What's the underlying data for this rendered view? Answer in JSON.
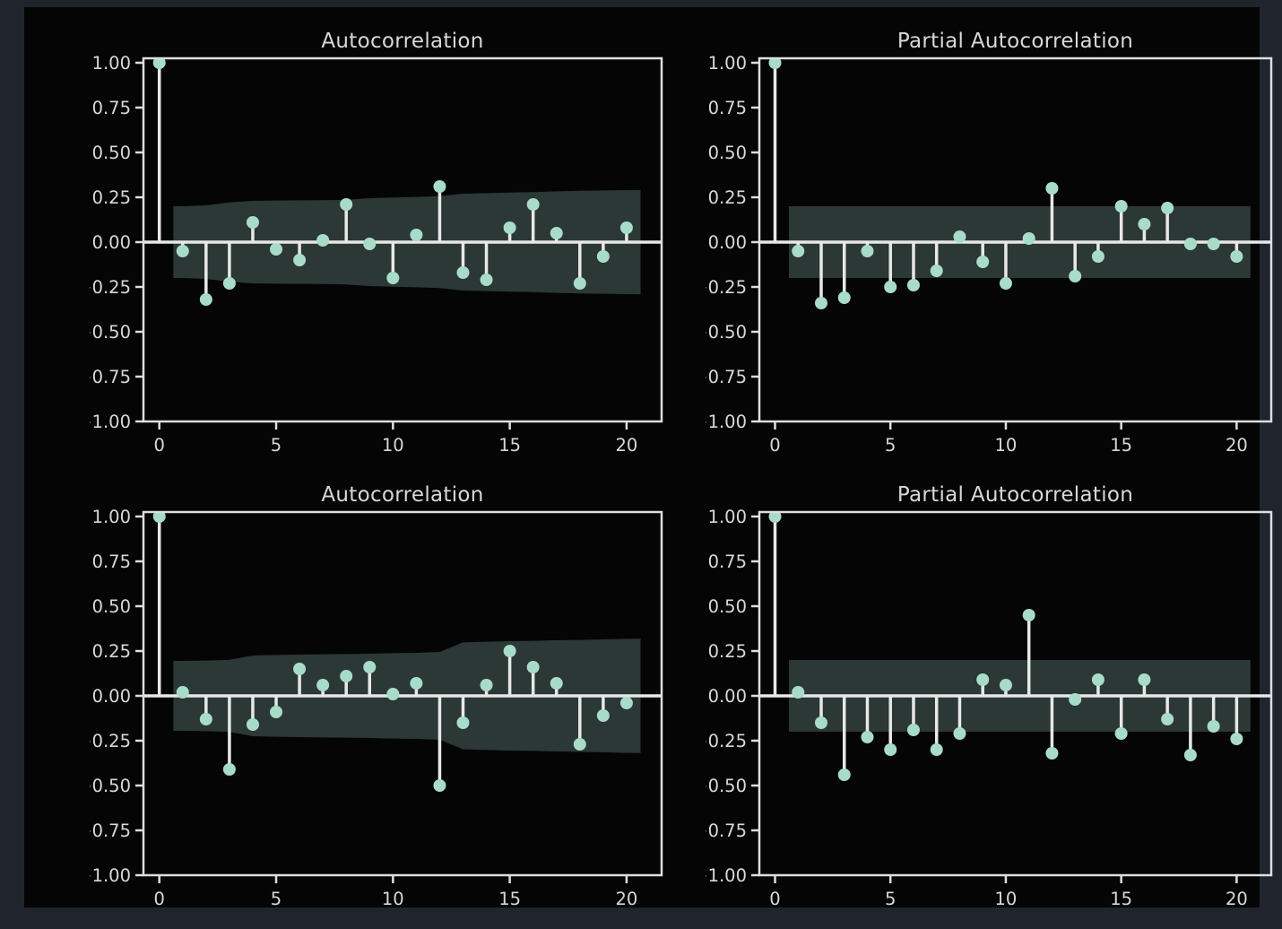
{
  "colors": {
    "page_background": "#20242c",
    "figure_background": "#050505",
    "band_fill": "#2b3835",
    "marker": "#a8dcc8",
    "stem": "#e8e8e6",
    "spine": "#dedede",
    "tick_label": "#d8d8d8",
    "title": "#d8d8d8"
  },
  "axes_defaults": {
    "xlim": [
      -0.68,
      21.5
    ],
    "ylim": [
      -1.0,
      1.025
    ],
    "x_tick_values": [
      0,
      5,
      10,
      15,
      20
    ],
    "x_tick_labels": [
      "0",
      "5",
      "10",
      "15",
      "20"
    ],
    "y_tick_values": [
      1.0,
      0.75,
      0.5,
      0.25,
      0.0,
      -0.25,
      -0.5,
      -0.75,
      -1.0
    ],
    "y_tick_labels": [
      "1.00",
      "0.75",
      "0.50",
      "0.25",
      "0.00",
      "−0.25",
      "−0.50",
      "−0.75",
      "−1.00"
    ],
    "grid": false,
    "legend": "none"
  },
  "chart_data": [
    {
      "id": "tl",
      "type": "stem",
      "title": "Autocorrelation",
      "position": "top-left",
      "lags": [
        0,
        1,
        2,
        3,
        4,
        5,
        6,
        7,
        8,
        9,
        10,
        11,
        12,
        13,
        14,
        15,
        16,
        17,
        18,
        19,
        20
      ],
      "values": [
        1.0,
        -0.05,
        -0.32,
        -0.23,
        0.11,
        -0.04,
        -0.1,
        0.01,
        0.21,
        -0.01,
        -0.2,
        0.04,
        0.31,
        -0.17,
        -0.21,
        0.08,
        0.21,
        0.05,
        -0.23,
        -0.08,
        0.08
      ],
      "band": {
        "lags": [
          0.6,
          1,
          2,
          3,
          4,
          5,
          6,
          7,
          8,
          9,
          10,
          11,
          12,
          13,
          14,
          15,
          16,
          17,
          18,
          19,
          20,
          20.6
        ],
        "half_widths": [
          0.2,
          0.2,
          0.205,
          0.221,
          0.23,
          0.232,
          0.233,
          0.234,
          0.236,
          0.245,
          0.249,
          0.252,
          0.256,
          0.27,
          0.273,
          0.276,
          0.279,
          0.283,
          0.286,
          0.288,
          0.29,
          0.291
        ]
      }
    },
    {
      "id": "tr",
      "type": "stem",
      "title": "Partial Autocorrelation",
      "position": "top-right",
      "lags": [
        0,
        1,
        2,
        3,
        4,
        5,
        6,
        7,
        8,
        9,
        10,
        11,
        12,
        13,
        14,
        15,
        16,
        17,
        18,
        19,
        20
      ],
      "values": [
        1.0,
        -0.05,
        -0.34,
        -0.31,
        -0.05,
        -0.25,
        -0.24,
        -0.16,
        0.03,
        -0.11,
        -0.23,
        0.02,
        0.3,
        -0.19,
        -0.08,
        0.2,
        0.1,
        0.19,
        -0.01,
        -0.01,
        -0.08
      ],
      "band": {
        "lags": [
          0.6,
          20.6
        ],
        "half_widths": [
          0.2,
          0.2
        ]
      }
    },
    {
      "id": "bl",
      "type": "stem",
      "title": "Autocorrelation",
      "position": "bottom-left",
      "lags": [
        0,
        1,
        2,
        3,
        4,
        5,
        6,
        7,
        8,
        9,
        10,
        11,
        12,
        13,
        14,
        15,
        16,
        17,
        18,
        19,
        20
      ],
      "values": [
        1.0,
        0.02,
        -0.13,
        -0.41,
        -0.16,
        -0.09,
        0.15,
        0.06,
        0.11,
        0.16,
        0.01,
        0.07,
        -0.5,
        -0.15,
        0.06,
        0.25,
        0.16,
        0.07,
        -0.27,
        -0.11,
        -0.04
      ],
      "band": {
        "lags": [
          0.6,
          1,
          2,
          3,
          4,
          5,
          6,
          7,
          8,
          9,
          10,
          11,
          12,
          13,
          14,
          15,
          16,
          17,
          18,
          19,
          20,
          20.6
        ],
        "half_widths": [
          0.195,
          0.195,
          0.197,
          0.201,
          0.225,
          0.228,
          0.23,
          0.232,
          0.233,
          0.235,
          0.238,
          0.24,
          0.245,
          0.298,
          0.302,
          0.305,
          0.307,
          0.31,
          0.312,
          0.315,
          0.318,
          0.319
        ]
      }
    },
    {
      "id": "br",
      "type": "stem",
      "title": "Partial Autocorrelation",
      "position": "bottom-right",
      "lags": [
        0,
        1,
        2,
        3,
        4,
        5,
        6,
        7,
        8,
        9,
        10,
        11,
        12,
        13,
        14,
        15,
        16,
        17,
        18,
        19,
        20
      ],
      "values": [
        1.0,
        0.02,
        -0.15,
        -0.44,
        -0.23,
        -0.3,
        -0.19,
        -0.3,
        -0.21,
        0.09,
        0.06,
        0.45,
        -0.32,
        -0.02,
        0.09,
        -0.21,
        0.09,
        -0.13,
        -0.33,
        -0.17,
        -0.24
      ],
      "band": {
        "lags": [
          0.6,
          20.6
        ],
        "half_widths": [
          0.2,
          0.2
        ]
      }
    }
  ]
}
